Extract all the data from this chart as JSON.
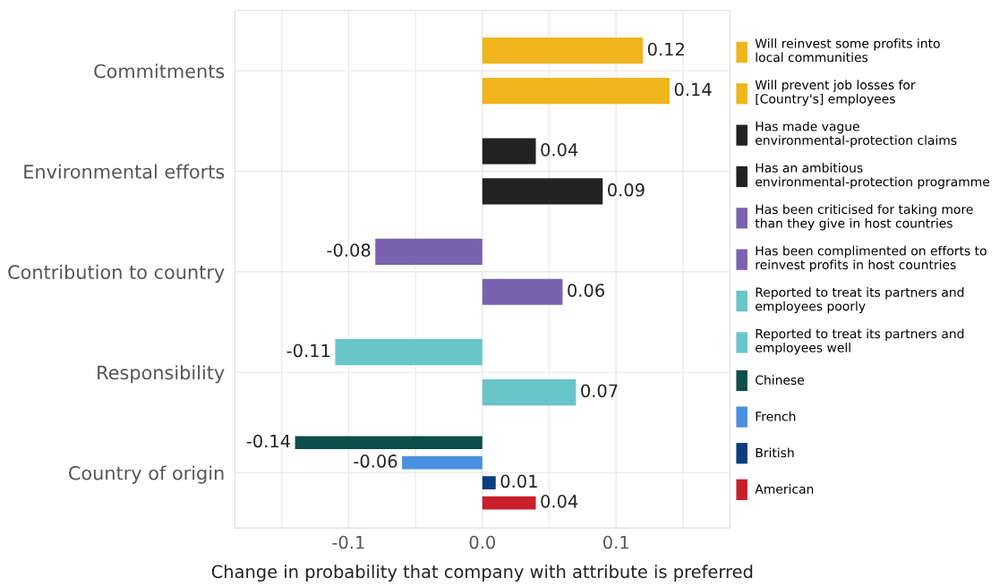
{
  "chart_data": {
    "type": "bar",
    "orientation": "horizontal",
    "xlabel": "Change in probability that company with attribute is preferred",
    "categories": [
      "Commitments",
      "Environmental efforts",
      "Contribution to country",
      "Responsibility",
      "Country of origin"
    ],
    "series": [
      {
        "name": "Will reinvest some profits into\nlocal communities",
        "color": "#f0b41c",
        "values": [
          0.12,
          null,
          null,
          null,
          null
        ]
      },
      {
        "name": "Will prevent job losses for\n[Country's] employees",
        "color": "#f0b41c",
        "values": [
          0.14,
          null,
          null,
          null,
          null
        ]
      },
      {
        "name": "Has made vague\nenvironmental-protection claims",
        "color": "#222222",
        "values": [
          null,
          0.04,
          null,
          null,
          null
        ]
      },
      {
        "name": "Has an ambitious\nenvironmental-protection programme",
        "color": "#222222",
        "values": [
          null,
          0.09,
          null,
          null,
          null
        ]
      },
      {
        "name": "Has been criticised for taking more\nthan they give in host countries",
        "color": "#7a62b0",
        "values": [
          null,
          null,
          -0.08,
          null,
          null
        ]
      },
      {
        "name": "Has been complimented on efforts to\nreinvest profits in host countries",
        "color": "#7a62b0",
        "values": [
          null,
          null,
          0.06,
          null,
          null
        ]
      },
      {
        "name": "Reported to treat its partners and\nemployees poorly",
        "color": "#68c5c8",
        "values": [
          null,
          null,
          null,
          -0.11,
          null
        ]
      },
      {
        "name": "Reported to treat its partners and\nemployees well",
        "color": "#68c5c8",
        "values": [
          null,
          null,
          null,
          0.07,
          null
        ]
      },
      {
        "name": "Chinese",
        "color": "#0e4e4a",
        "values": [
          null,
          null,
          null,
          null,
          -0.14
        ]
      },
      {
        "name": "French",
        "color": "#4a90e0",
        "values": [
          null,
          null,
          null,
          null,
          -0.06
        ]
      },
      {
        "name": "British",
        "color": "#0a3d7e",
        "values": [
          null,
          null,
          null,
          null,
          0.01
        ]
      },
      {
        "name": "American",
        "color": "#c8202a",
        "values": [
          null,
          null,
          null,
          null,
          0.04
        ]
      }
    ],
    "xlim": [
      -0.185,
      0.185
    ],
    "xticks": [
      {
        "value": -0.15,
        "label": null
      },
      -0.1,
      {
        "value": -0.05,
        "label": null
      },
      {
        "value": 0.0,
        "label": "0.0"
      },
      {
        "value": 0.05,
        "label": null
      },
      0.1,
      {
        "value": 0.15,
        "label": null
      }
    ],
    "grid": true,
    "legend": "right",
    "data_labels": true
  }
}
